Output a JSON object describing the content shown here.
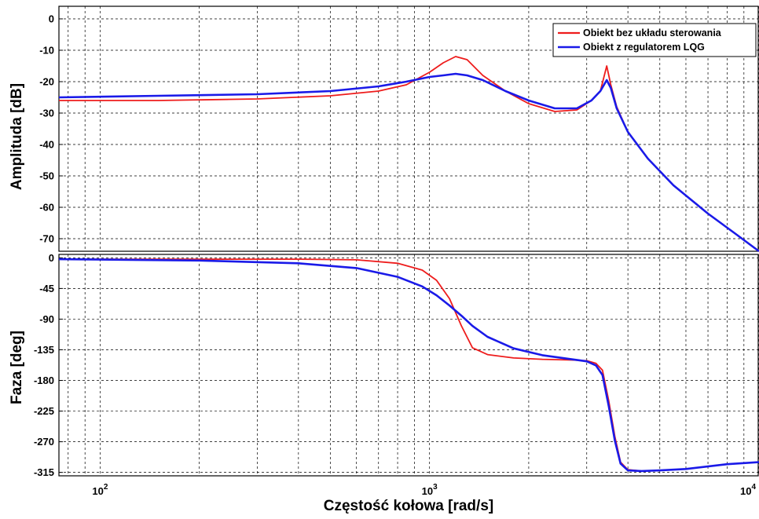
{
  "chart_data": [
    {
      "type": "line",
      "panel": "magnitude",
      "ylabel": "Amplituda [dB]",
      "xscale": "log",
      "xlim": [
        75,
        10000
      ],
      "ylim": [
        -74,
        4
      ],
      "yticks": [
        0,
        -10,
        -20,
        -30,
        -40,
        -50,
        -60,
        -70
      ],
      "ytick_labels": [
        "0",
        "-10",
        "-20",
        "-30",
        "-40",
        "-50",
        "-60",
        "-70"
      ],
      "grid": true,
      "legend": "top-right",
      "series": [
        {
          "name": "Obiekt bez układu sterowania",
          "color": "#ee1c1c",
          "x": [
            75,
            150,
            300,
            500,
            700,
            850,
            1000,
            1100,
            1200,
            1300,
            1450,
            1700,
            2000,
            2400,
            2800,
            3100,
            3300,
            3450,
            3550,
            3700,
            4000,
            4600,
            5500,
            7000,
            8500,
            10000
          ],
          "y": [
            -26,
            -26,
            -25.5,
            -24.5,
            -23,
            -21,
            -17,
            -14,
            -12,
            -13,
            -18,
            -23,
            -27,
            -29.5,
            -29,
            -26,
            -23,
            -15,
            -21,
            -28,
            -36,
            -44.5,
            -53,
            -62,
            -68.5,
            -74
          ]
        },
        {
          "name": "Obiekt z regulatorem LQG",
          "color": "#1a1ae8",
          "x": [
            75,
            150,
            300,
            500,
            700,
            850,
            1000,
            1100,
            1200,
            1300,
            1450,
            1700,
            2000,
            2400,
            2800,
            3100,
            3300,
            3450,
            3550,
            3700,
            4000,
            4600,
            5500,
            7000,
            8500,
            10000
          ],
          "y": [
            -25,
            -24.5,
            -24,
            -23,
            -21.5,
            -20,
            -18.5,
            -18,
            -17.5,
            -18,
            -19.5,
            -23,
            -26,
            -28.5,
            -28.5,
            -26,
            -23,
            -19.5,
            -22,
            -28.5,
            -36,
            -44.5,
            -53,
            -62,
            -68.5,
            -74
          ]
        }
      ]
    },
    {
      "type": "line",
      "panel": "phase",
      "xlabel": "Częstość kołowa [rad/s]",
      "ylabel": "Faza [deg]",
      "xscale": "log",
      "xlim": [
        75,
        10000
      ],
      "ylim": [
        -320,
        5
      ],
      "yticks": [
        0,
        -45,
        -90,
        -135,
        -180,
        -225,
        -270,
        -315
      ],
      "ytick_labels": [
        "0",
        "-45",
        "-90",
        "-135",
        "-180",
        "-225",
        "-270",
        "-315"
      ],
      "xticks": [
        100,
        1000,
        10000
      ],
      "xtick_labels": [
        {
          "base": "10",
          "exp": "2"
        },
        {
          "base": "10",
          "exp": "3"
        },
        {
          "base": "10",
          "exp": "4"
        }
      ],
      "grid": true,
      "series": [
        {
          "name": "Obiekt bez układu sterowania",
          "color": "#ee1c1c",
          "x": [
            75,
            200,
            400,
            600,
            800,
            950,
            1050,
            1150,
            1250,
            1350,
            1500,
            1800,
            2200,
            2700,
            3000,
            3200,
            3350,
            3500,
            3650,
            3800,
            4000,
            4400,
            5000,
            6000,
            8000,
            10000
          ],
          "y": [
            -2,
            -2,
            -2,
            -3,
            -8,
            -18,
            -33,
            -60,
            -100,
            -132,
            -142,
            -147,
            -149,
            -150,
            -151,
            -155,
            -165,
            -210,
            -262,
            -300,
            -311,
            -313,
            -312,
            -310,
            -303,
            -300
          ]
        },
        {
          "name": "Obiekt z regulatorem LQG",
          "color": "#1a1ae8",
          "x": [
            75,
            200,
            400,
            600,
            800,
            950,
            1050,
            1150,
            1250,
            1350,
            1500,
            1800,
            2200,
            2700,
            3000,
            3200,
            3350,
            3500,
            3650,
            3800,
            4000,
            4400,
            5000,
            6000,
            8000,
            10000
          ],
          "y": [
            -2,
            -4,
            -8,
            -15,
            -28,
            -42,
            -55,
            -70,
            -85,
            -100,
            -116,
            -133,
            -143,
            -149,
            -152,
            -158,
            -172,
            -218,
            -268,
            -302,
            -312,
            -313,
            -312,
            -310,
            -303,
            -300
          ]
        }
      ]
    }
  ]
}
